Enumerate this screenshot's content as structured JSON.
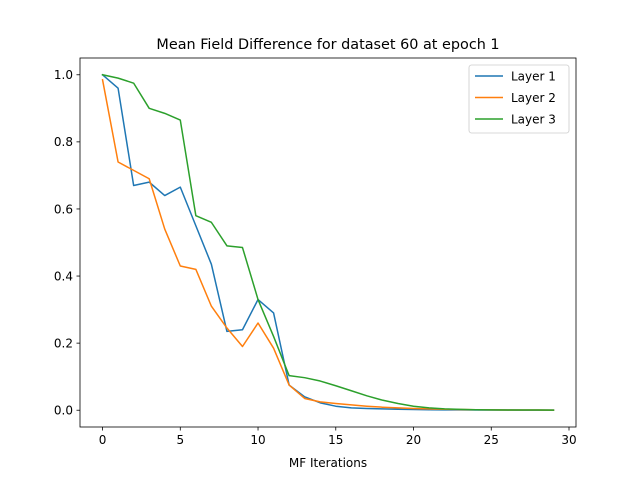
{
  "chart_data": {
    "type": "line",
    "title": "Mean Field Difference for dataset 60 at epoch 1",
    "xlabel": "MF Iterations",
    "ylabel": "",
    "xlim": [
      -1.45,
      30.45
    ],
    "ylim": [
      -0.05,
      1.05
    ],
    "xticks": [
      0,
      5,
      10,
      15,
      20,
      25,
      30
    ],
    "yticks": [
      0.0,
      0.2,
      0.4,
      0.6,
      0.8,
      1.0
    ],
    "grid": false,
    "legend_position": "top-right",
    "x": [
      0,
      1,
      2,
      3,
      4,
      5,
      6,
      7,
      8,
      9,
      10,
      11,
      12,
      13,
      14,
      15,
      16,
      17,
      18,
      19,
      20,
      21,
      22,
      23,
      24,
      25,
      26,
      27,
      28,
      29
    ],
    "series": [
      {
        "name": "Layer 1",
        "color": "#1f77b4",
        "values": [
          1.0,
          0.96,
          0.67,
          0.68,
          0.64,
          0.665,
          0.55,
          0.435,
          0.235,
          0.24,
          0.33,
          0.29,
          0.075,
          0.04,
          0.022,
          0.012,
          0.007,
          0.005,
          0.004,
          0.003,
          0.002,
          0.0015,
          0.001,
          0.001,
          0.0008,
          0.0006,
          0.0005,
          0.0004,
          0.0003,
          0.0002
        ]
      },
      {
        "name": "Layer 2",
        "color": "#ff7f0e",
        "values": [
          0.985,
          0.74,
          0.715,
          0.69,
          0.54,
          0.43,
          0.42,
          0.31,
          0.245,
          0.19,
          0.26,
          0.185,
          0.075,
          0.035,
          0.025,
          0.02,
          0.016,
          0.012,
          0.009,
          0.007,
          0.005,
          0.004,
          0.003,
          0.002,
          0.0015,
          0.001,
          0.0008,
          0.0006,
          0.0005,
          0.0004
        ]
      },
      {
        "name": "Layer 3",
        "color": "#2ca02c",
        "values": [
          1.0,
          0.99,
          0.975,
          0.9,
          0.885,
          0.865,
          0.58,
          0.56,
          0.49,
          0.485,
          0.33,
          0.22,
          0.103,
          0.097,
          0.087,
          0.073,
          0.058,
          0.043,
          0.03,
          0.02,
          0.012,
          0.007,
          0.004,
          0.0025,
          0.0015,
          0.001,
          0.0008,
          0.0006,
          0.0005,
          0.0004
        ]
      }
    ]
  }
}
